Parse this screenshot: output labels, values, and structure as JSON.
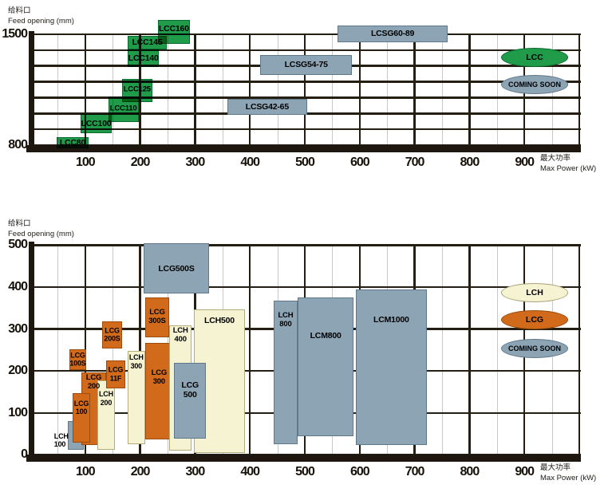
{
  "colors": {
    "green": "#1f9b4a",
    "steel": "#8da4b4",
    "orange": "#d16a1a",
    "cream": "#f6f3d2",
    "grid_major": "#251e12",
    "grid_minor": "#c9c9c9",
    "axis_bar": "#1d1710"
  },
  "chart_data": [
    {
      "id": "top",
      "type": "range-box",
      "y_title_cn": "给料口",
      "y_title_en": "Feed opening (mm)",
      "x_title_cn": "最大功率",
      "x_title_en": "Max Power (kW)",
      "xlim": [
        0,
        1000
      ],
      "ylim": [
        800,
        1500
      ],
      "x_ticks": [
        100,
        200,
        300,
        400,
        500,
        600,
        700,
        800,
        900
      ],
      "y_ticks": [
        1500,
        800
      ],
      "x_minor_step": 50,
      "y_major_step": 100,
      "boxes": [
        {
          "name": "LCC80",
          "label_lines": [
            "LCC80"
          ],
          "color": "green",
          "kw": [
            48,
            106
          ],
          "mm": [
            778,
            849
          ],
          "align": "center"
        },
        {
          "name": "LCC100",
          "label_lines": [
            "LCC100"
          ],
          "color": "green",
          "kw": [
            91,
            149
          ],
          "mm": [
            874,
            996
          ],
          "align": "center"
        },
        {
          "name": "LCC110",
          "label_lines": [
            "LCC110"
          ],
          "color": "green",
          "kw": [
            142,
            197
          ],
          "mm": [
            945,
            1107
          ],
          "align": "center"
        },
        {
          "name": "LCC125",
          "label_lines": [
            "LCC125"
          ],
          "color": "green",
          "kw": [
            167,
            222
          ],
          "mm": [
            1072,
            1218
          ],
          "align": "center"
        },
        {
          "name": "LCC140",
          "label_lines": [
            "LCC140"
          ],
          "color": "green",
          "kw": [
            178,
            234
          ],
          "mm": [
            1294,
            1405
          ],
          "align": "center"
        },
        {
          "name": "LCC145",
          "label_lines": [
            "LCC145"
          ],
          "color": "green",
          "kw": [
            178,
            248
          ],
          "mm": [
            1405,
            1491
          ],
          "align": "center"
        },
        {
          "name": "LCC160",
          "label_lines": [
            "LCC160"
          ],
          "color": "green",
          "kw": [
            232,
            291
          ],
          "mm": [
            1441,
            1593
          ],
          "align": "top",
          "dy": 5
        },
        {
          "name": "LCSG42-65",
          "label_lines": [
            "LCSG42-65"
          ],
          "color": "steel",
          "kw": [
            359,
            504
          ],
          "mm": [
            991,
            1092
          ],
          "align": "center"
        },
        {
          "name": "LCSG54-75",
          "label_lines": [
            "LCSG54-75"
          ],
          "color": "steel",
          "kw": [
            419,
            586
          ],
          "mm": [
            1244,
            1370
          ],
          "align": "center"
        },
        {
          "name": "LCSG60-89",
          "label_lines": [
            "LCSG60-89"
          ],
          "color": "steel",
          "kw": [
            560,
            760
          ],
          "mm": [
            1451,
            1557
          ],
          "align": "center"
        }
      ],
      "legend": [
        {
          "label": "LCC",
          "color": "green"
        },
        {
          "label": "COMING SOON",
          "color": "steel"
        }
      ]
    },
    {
      "id": "bottom",
      "type": "range-box",
      "y_title_cn": "给料口",
      "y_title_en": "Feed opening (mm)",
      "x_title_cn": "最大功率",
      "x_title_en": "Max Power (kW)",
      "xlim": [
        0,
        1000
      ],
      "ylim": [
        0,
        500
      ],
      "x_ticks": [
        100,
        200,
        300,
        400,
        500,
        600,
        700,
        800,
        900
      ],
      "y_ticks": [
        500,
        400,
        300,
        200,
        100,
        0
      ],
      "x_minor_step": 50,
      "y_major_step": 100,
      "boxes": [
        {
          "name": "LCH100",
          "label_lines": [
            "LCH",
            "100"
          ],
          "color": "steel",
          "kw": [
            68,
            97
          ],
          "mm": [
            13,
            80
          ],
          "align": "bottom-out"
        },
        {
          "name": "LCG200",
          "label_lines": [
            "LCG",
            "200"
          ],
          "color": "orange",
          "kw": [
            93,
            138
          ],
          "mm": [
            23,
            196
          ],
          "align": "top",
          "dy": 2
        },
        {
          "name": "LCG100",
          "label_lines": [
            "LCG",
            "100"
          ],
          "color": "orange",
          "kw": [
            77,
            109
          ],
          "mm": [
            29,
            148
          ],
          "align": "top",
          "dy": 8
        },
        {
          "name": "LCH200",
          "label_lines": [
            "LCH",
            "200"
          ],
          "color": "cream",
          "kw": [
            122,
            154
          ],
          "mm": [
            13,
            177
          ],
          "align": "top",
          "dy": 12
        },
        {
          "name": "LCG11F",
          "label_lines": [
            "LCG",
            "11F"
          ],
          "color": "orange",
          "kw": [
            138,
            173
          ],
          "mm": [
            158,
            226
          ],
          "align": "center"
        },
        {
          "name": "LCG100S",
          "label_lines": [
            "LCG",
            "100S"
          ],
          "color": "orange",
          "kw": [
            71,
            102
          ],
          "mm": [
            203,
            251
          ],
          "align": "center"
        },
        {
          "name": "LCG200S",
          "label_lines": [
            "LCG",
            "200S"
          ],
          "color": "orange",
          "kw": [
            131,
            167
          ],
          "mm": [
            253,
            319
          ],
          "align": "center"
        },
        {
          "name": "LCH300",
          "label_lines": [
            "LCH",
            "300"
          ],
          "color": "cream",
          "kw": [
            177,
            209
          ],
          "mm": [
            25,
            247
          ],
          "align": "top",
          "dy": 3
        },
        {
          "name": "LCG300",
          "label_lines": [
            "LCG",
            "300"
          ],
          "color": "orange",
          "kw": [
            209,
            260
          ],
          "mm": [
            36,
            266
          ],
          "align": "top",
          "dy": 33
        },
        {
          "name": "LCH400",
          "label_lines": [
            "LCH",
            "400"
          ],
          "color": "cream",
          "kw": [
            253,
            294
          ],
          "mm": [
            10,
            308
          ],
          "align": "top",
          "dy": 2
        },
        {
          "name": "LCH500",
          "label_lines": [
            "LCH500"
          ],
          "color": "cream",
          "kw": [
            298,
            391
          ],
          "mm": [
            4,
            346
          ],
          "align": "top",
          "dy": 8
        },
        {
          "name": "LCG500",
          "label_lines": [
            "LCG",
            "500"
          ],
          "color": "steel",
          "kw": [
            262,
            320
          ],
          "mm": [
            38,
            219
          ],
          "align": "top",
          "dy": 22
        },
        {
          "name": "LCG300S",
          "label_lines": [
            "LCG",
            "300S"
          ],
          "color": "orange",
          "kw": [
            209,
            253
          ],
          "mm": [
            281,
            375
          ],
          "align": "center"
        },
        {
          "name": "LCG500S",
          "label_lines": [
            "LCG500S"
          ],
          "color": "steel",
          "kw": [
            206,
            326
          ],
          "mm": [
            384,
            504
          ],
          "align": "center"
        },
        {
          "name": "LCH800",
          "label_lines": [
            "LCH",
            "800"
          ],
          "color": "steel",
          "kw": [
            443,
            487
          ],
          "mm": [
            25,
            367
          ],
          "align": "top",
          "dy": 14
        },
        {
          "name": "LCM800",
          "label_lines": [
            "LCM800"
          ],
          "color": "steel",
          "kw": [
            487,
            589
          ],
          "mm": [
            44,
            375
          ],
          "align": "top",
          "dy": 42
        },
        {
          "name": "LCM1000",
          "label_lines": [
            "LCM1000"
          ],
          "color": "steel",
          "kw": [
            593,
            722
          ],
          "mm": [
            23,
            394
          ],
          "align": "top",
          "dy": 32
        }
      ],
      "legend": [
        {
          "label": "LCH",
          "color": "cream"
        },
        {
          "label": "LCG",
          "color": "orange"
        },
        {
          "label": "COMING SOON",
          "color": "steel"
        }
      ]
    }
  ]
}
